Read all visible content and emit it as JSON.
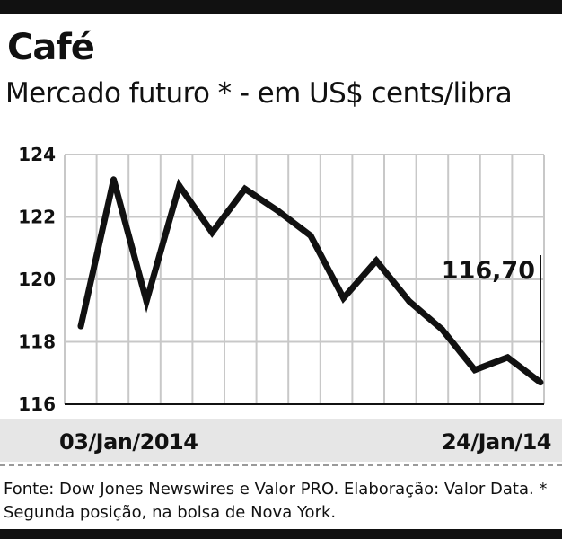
{
  "header": {
    "title": "Café",
    "subtitle": "Mercado futuro * - em US$ cents/libra"
  },
  "chart_data": {
    "type": "line",
    "title": "Café",
    "subtitle": "Mercado futuro * - em US$ cents/libra",
    "xlabel": "",
    "ylabel": "",
    "x_start_label": "03/Jan/2014",
    "x_end_label": "24/Jan/14",
    "ylim": [
      116,
      124
    ],
    "yticks": [
      "124",
      "122",
      "120",
      "118",
      "116"
    ],
    "grid": true,
    "series": [
      {
        "values": [
          118.5,
          123.2,
          119.3,
          123.0,
          121.5,
          122.9,
          122.2,
          121.4,
          119.4,
          120.6,
          119.3,
          118.4,
          117.1,
          117.5,
          116.7
        ]
      }
    ],
    "annotation": {
      "text": "116,70",
      "point_index": 14
    },
    "colors": {
      "line": "#111111",
      "grid": "#c8c8c8",
      "band": "#e6e6e6"
    }
  },
  "footer": {
    "source": "Fonte: Dow Jones Newswires e Valor PRO. Elaboração: Valor Data. * Segunda posição, na bolsa de Nova York."
  }
}
